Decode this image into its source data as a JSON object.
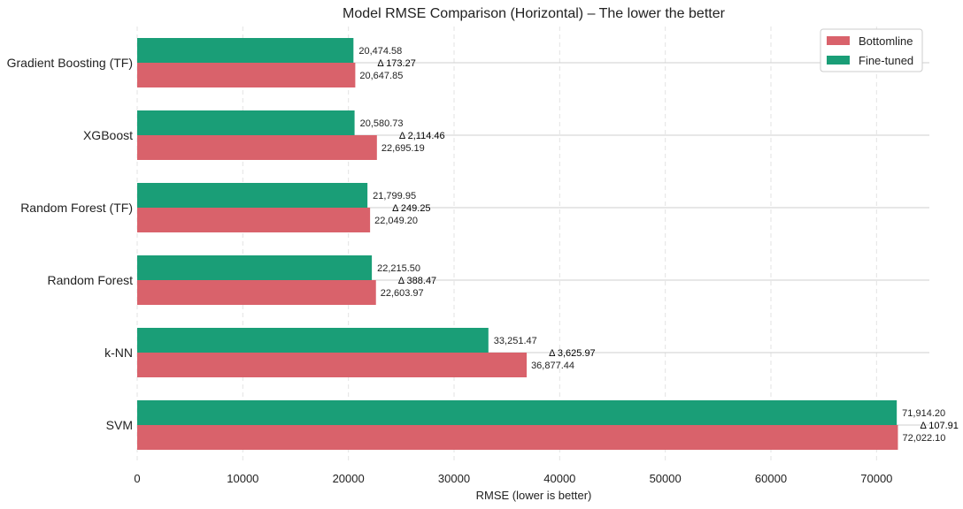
{
  "chart_data": {
    "type": "bar",
    "orientation": "horizontal",
    "title": "Model RMSE Comparison (Horizontal) – The lower the better",
    "xlabel": "RMSE (lower is better)",
    "ylabel": "",
    "xlim": [
      0,
      75000
    ],
    "x_ticks": [
      0,
      10000,
      20000,
      30000,
      40000,
      50000,
      60000,
      70000
    ],
    "x_tick_labels": [
      "0",
      "10000",
      "20000",
      "30000",
      "40000",
      "50000",
      "60000",
      "70000"
    ],
    "grid": "vertical dashed",
    "legend_position": "top-right",
    "categories": [
      "Gradient Boosting (TF)",
      "XGBoost",
      "Random Forest (TF)",
      "Random Forest",
      "k-NN",
      "SVM"
    ],
    "series": [
      {
        "name": "Bottomline",
        "color": "#d9626b",
        "values": [
          20647.85,
          22695.19,
          22049.2,
          22603.97,
          36877.44,
          72022.1
        ],
        "labels": [
          "20,647.85",
          "22,695.19",
          "22,049.20",
          "22,603.97",
          "36,877.44",
          "72,022.10"
        ]
      },
      {
        "name": "Fine-tuned",
        "color": "#1a9e77",
        "values": [
          20474.58,
          20580.73,
          21799.95,
          22215.5,
          33251.47,
          71914.2
        ],
        "labels": [
          "20,474.58",
          "20,580.73",
          "21,799.95",
          "22,215.50",
          "33,251.47",
          "71,914.20"
        ]
      }
    ],
    "deltas": [
      "Δ 173.27",
      "Δ 2,114.46",
      "Δ 249.25",
      "Δ 388.47",
      "Δ 3,625.97",
      "Δ 107.91"
    ]
  }
}
